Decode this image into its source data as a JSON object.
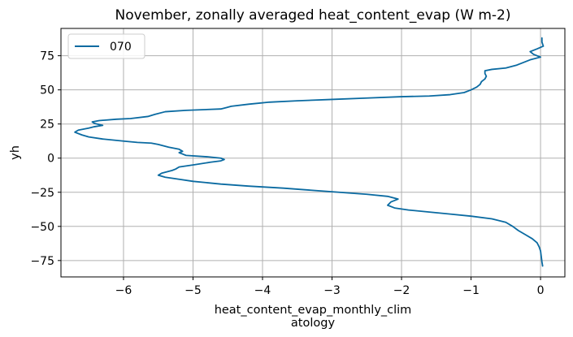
{
  "chart_data": {
    "type": "line",
    "title": "November, zonally averaged heat_content_evap (W m-2)",
    "xlabel_lines": [
      "heat_content_evap_monthly_clim",
      "atology"
    ],
    "ylabel": "yh",
    "xlim": [
      -6.9,
      0.35
    ],
    "ylim": [
      -87,
      95
    ],
    "xticks": [
      -6,
      -5,
      -4,
      -3,
      -2,
      -1,
      0
    ],
    "yticks": [
      -75,
      -50,
      -25,
      0,
      25,
      50,
      75
    ],
    "xtick_labels": [
      "−6",
      "−5",
      "−4",
      "−3",
      "−2",
      "−1",
      "0"
    ],
    "ytick_labels": [
      "−75",
      "−50",
      "−25",
      "0",
      "25",
      "50",
      "75"
    ],
    "grid": true,
    "legend_position": "top-left",
    "series": [
      {
        "name": "070",
        "color": "#0a6aa1",
        "points": [
          [
            0.02,
            88
          ],
          [
            0.02,
            85
          ],
          [
            0.04,
            82
          ],
          [
            -0.05,
            80
          ],
          [
            -0.15,
            78
          ],
          [
            -0.1,
            76
          ],
          [
            0.0,
            74
          ],
          [
            -0.15,
            72
          ],
          [
            -0.25,
            70
          ],
          [
            -0.35,
            68
          ],
          [
            -0.5,
            66
          ],
          [
            -0.7,
            65
          ],
          [
            -0.8,
            64
          ],
          [
            -0.8,
            62
          ],
          [
            -0.78,
            60
          ],
          [
            -0.8,
            58
          ],
          [
            -0.85,
            56
          ],
          [
            -0.87,
            54
          ],
          [
            -0.92,
            52
          ],
          [
            -1.0,
            50
          ],
          [
            -1.1,
            48
          ],
          [
            -1.3,
            46.5
          ],
          [
            -1.6,
            45.5
          ],
          [
            -2.0,
            45
          ],
          [
            -2.5,
            44
          ],
          [
            -3.0,
            43
          ],
          [
            -3.5,
            42
          ],
          [
            -3.9,
            41
          ],
          [
            -4.2,
            39.5
          ],
          [
            -4.45,
            38
          ],
          [
            -4.52,
            37
          ],
          [
            -4.6,
            36
          ],
          [
            -5.1,
            35
          ],
          [
            -5.4,
            34
          ],
          [
            -5.55,
            32
          ],
          [
            -5.65,
            30.5
          ],
          [
            -5.9,
            29
          ],
          [
            -6.1,
            28.5
          ],
          [
            -6.35,
            27.5
          ],
          [
            -6.45,
            26.5
          ],
          [
            -6.42,
            25.5
          ],
          [
            -6.3,
            24
          ],
          [
            -6.42,
            23
          ],
          [
            -6.5,
            22
          ],
          [
            -6.65,
            20.5
          ],
          [
            -6.7,
            19
          ],
          [
            -6.6,
            17
          ],
          [
            -6.5,
            15.5
          ],
          [
            -6.3,
            14
          ],
          [
            -6.0,
            12.5
          ],
          [
            -5.8,
            11.5
          ],
          [
            -5.6,
            11
          ],
          [
            -5.5,
            10
          ],
          [
            -5.35,
            8
          ],
          [
            -5.2,
            6.5
          ],
          [
            -5.15,
            5
          ],
          [
            -5.2,
            4
          ],
          [
            -5.15,
            3
          ],
          [
            -5.1,
            2
          ],
          [
            -4.8,
            1
          ],
          [
            -4.6,
            0
          ],
          [
            -4.55,
            -1
          ],
          [
            -4.6,
            -2
          ],
          [
            -4.75,
            -3
          ],
          [
            -5.0,
            -5
          ],
          [
            -5.2,
            -6.5
          ],
          [
            -5.25,
            -8
          ],
          [
            -5.3,
            -9
          ],
          [
            -5.45,
            -11
          ],
          [
            -5.5,
            -12.5
          ],
          [
            -5.4,
            -14
          ],
          [
            -5.2,
            -15.5
          ],
          [
            -5.0,
            -17
          ],
          [
            -4.6,
            -19
          ],
          [
            -4.2,
            -20.5
          ],
          [
            -3.7,
            -22
          ],
          [
            -3.3,
            -23.5
          ],
          [
            -2.9,
            -25
          ],
          [
            -2.5,
            -26.5
          ],
          [
            -2.2,
            -28
          ],
          [
            -2.05,
            -30
          ],
          [
            -2.15,
            -32
          ],
          [
            -2.2,
            -34.5
          ],
          [
            -2.1,
            -36.5
          ],
          [
            -1.9,
            -38
          ],
          [
            -1.6,
            -39.5
          ],
          [
            -1.3,
            -41
          ],
          [
            -1.0,
            -42.5
          ],
          [
            -0.7,
            -44.5
          ],
          [
            -0.5,
            -47
          ],
          [
            -0.4,
            -50
          ],
          [
            -0.32,
            -53
          ],
          [
            -0.22,
            -56
          ],
          [
            -0.12,
            -59
          ],
          [
            -0.05,
            -62
          ],
          [
            -0.02,
            -65
          ],
          [
            0.0,
            -68
          ],
          [
            0.01,
            -72
          ],
          [
            0.02,
            -76
          ],
          [
            0.03,
            -79
          ]
        ]
      }
    ]
  }
}
